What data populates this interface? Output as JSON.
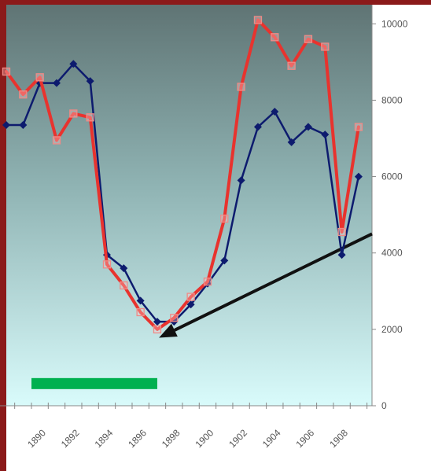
{
  "chart_data": {
    "type": "line",
    "title": "",
    "xlabel": "",
    "ylabel": "",
    "x": [
      1888.5,
      1889.5,
      1890.5,
      1891.5,
      1892.5,
      1893.5,
      1894.5,
      1895.5,
      1896.5,
      1897.5,
      1898.5,
      1899.5,
      1900.5,
      1901.5,
      1902.5,
      1903.5,
      1904.5,
      1905.5,
      1906.5,
      1907.5,
      1908.5,
      1909.5
    ],
    "xlim": [
      1888.5,
      1910.3
    ],
    "ylim": [
      0,
      10500
    ],
    "x_ticks": [
      "1890",
      "1892",
      "1894",
      "1896",
      "1898",
      "1900",
      "1902",
      "1904",
      "1906",
      "1908"
    ],
    "x_tick_values": [
      1890,
      1892,
      1894,
      1896,
      1898,
      1900,
      1902,
      1904,
      1906,
      1908
    ],
    "y_ticks": [
      "0",
      "2000",
      "4000",
      "6000",
      "8000",
      "10000"
    ],
    "y_tick_values": [
      0,
      2000,
      4000,
      6000,
      8000,
      10000
    ],
    "series": [
      {
        "marker": "diamond",
        "color": "#0d1b6e",
        "values": [
          7350,
          7350,
          8450,
          8450,
          8950,
          8500,
          3950,
          3600,
          2750,
          2200,
          2200,
          2650,
          3200,
          3800,
          5900,
          7300,
          7700,
          6900,
          7300,
          7100,
          3950,
          6000
        ]
      },
      {
        "marker": "square",
        "color": "#e8332e",
        "values": [
          8750,
          8150,
          8600,
          6950,
          7650,
          7550,
          3700,
          3150,
          2450,
          2000,
          2300,
          2850,
          3250,
          4900,
          8350,
          10100,
          9650,
          8900,
          9600,
          9400,
          4550,
          7300
        ]
      }
    ],
    "annotations": [
      {
        "type": "bar-marker",
        "color": "#00b050",
        "x_start": 1890,
        "x_end": 1897.5,
        "y": 580
      },
      {
        "type": "arrow",
        "color": "#111111",
        "x_from": 1910.3,
        "y_from": 4500,
        "x_to": 1897.6,
        "y_to": 1780
      }
    ],
    "grid": false,
    "legend": "none"
  }
}
